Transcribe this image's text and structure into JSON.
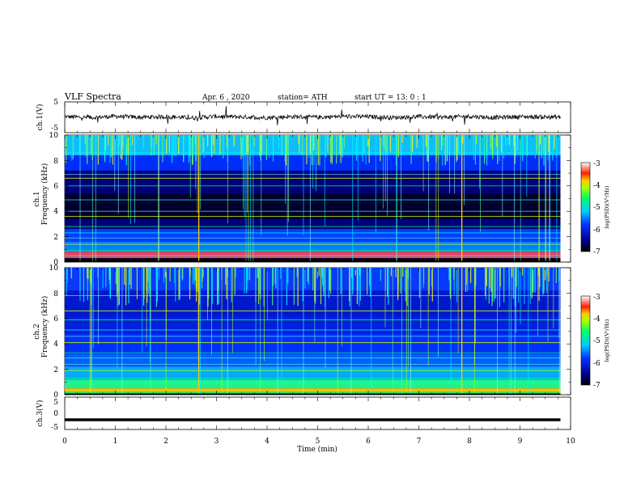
{
  "header": {
    "title": "VLF  Spectra",
    "date": "Apr. 6  , 2020",
    "station": "station= ATH",
    "start_ut": "start  UT  =    13: 0   : 1"
  },
  "chart_data": [
    {
      "type": "line",
      "panel": "ch1",
      "ylabel": "ch.1(V)",
      "ylim": [
        -5,
        5
      ],
      "yticks": [
        "5",
        "-5"
      ],
      "x": [
        0,
        0.5,
        1,
        1.5,
        2,
        2.5,
        3,
        3.5,
        4,
        4.5,
        5,
        5.5,
        6,
        6.5,
        7,
        7.5,
        8,
        8.5,
        9,
        9.5,
        9.8
      ],
      "values": [
        0.2,
        -0.1,
        0.3,
        0.0,
        0.2,
        -0.2,
        0.3,
        0.1,
        -0.1,
        0.2,
        0.0,
        0.3,
        0.2,
        -0.1,
        0.2,
        0.0,
        0.3,
        -0.1,
        0.2,
        0.1,
        0.0
      ],
      "grid": false
    },
    {
      "type": "heatmap",
      "panel": "ch2_upper",
      "ylabel_line1": "ch.1",
      "ylabel_line2": "Frequency  (kHz)",
      "ylim": [
        0,
        10
      ],
      "yticks": [
        "0",
        "2",
        "4",
        "6",
        "8",
        "10"
      ],
      "colorbar": {
        "label": "log(PSD)(V²/Hz)",
        "ticks": [
          "-3",
          "-4",
          "-5",
          "-6",
          "-7"
        ],
        "range": [
          -7,
          -3
        ]
      },
      "grid": false
    },
    {
      "type": "heatmap",
      "panel": "ch2_lower",
      "ylabel_line1": "ch.2",
      "ylabel_line2": "Frequency  (kHz)",
      "ylim": [
        0,
        10
      ],
      "yticks": [
        "0",
        "2",
        "4",
        "6",
        "8",
        "10"
      ],
      "colorbar": {
        "label": "log(PSD)(V²/Hz)",
        "ticks": [
          "-3",
          "-4",
          "-5",
          "-6",
          "-7"
        ],
        "range": [
          -7,
          -3
        ]
      },
      "grid": false
    },
    {
      "type": "line",
      "panel": "ch3",
      "ylabel": "ch.3(V)",
      "ylim": [
        -5,
        5
      ],
      "yticks": [
        "5",
        "0",
        "-5"
      ],
      "x": [
        0,
        9.8
      ],
      "values": [
        -2,
        -2
      ],
      "xlabel": "Time  (min)",
      "xticks": [
        "0",
        "1",
        "2",
        "3",
        "4",
        "5",
        "6",
        "7",
        "8",
        "9",
        "10"
      ],
      "xlim": [
        0,
        10
      ],
      "grid": false
    }
  ],
  "colors": {
    "colormap": [
      "#000000",
      "#000080",
      "#0000ff",
      "#0080ff",
      "#00ffff",
      "#00ff80",
      "#00ff00",
      "#ffff00",
      "#ff8000",
      "#ff0000",
      "#ffffff"
    ]
  }
}
